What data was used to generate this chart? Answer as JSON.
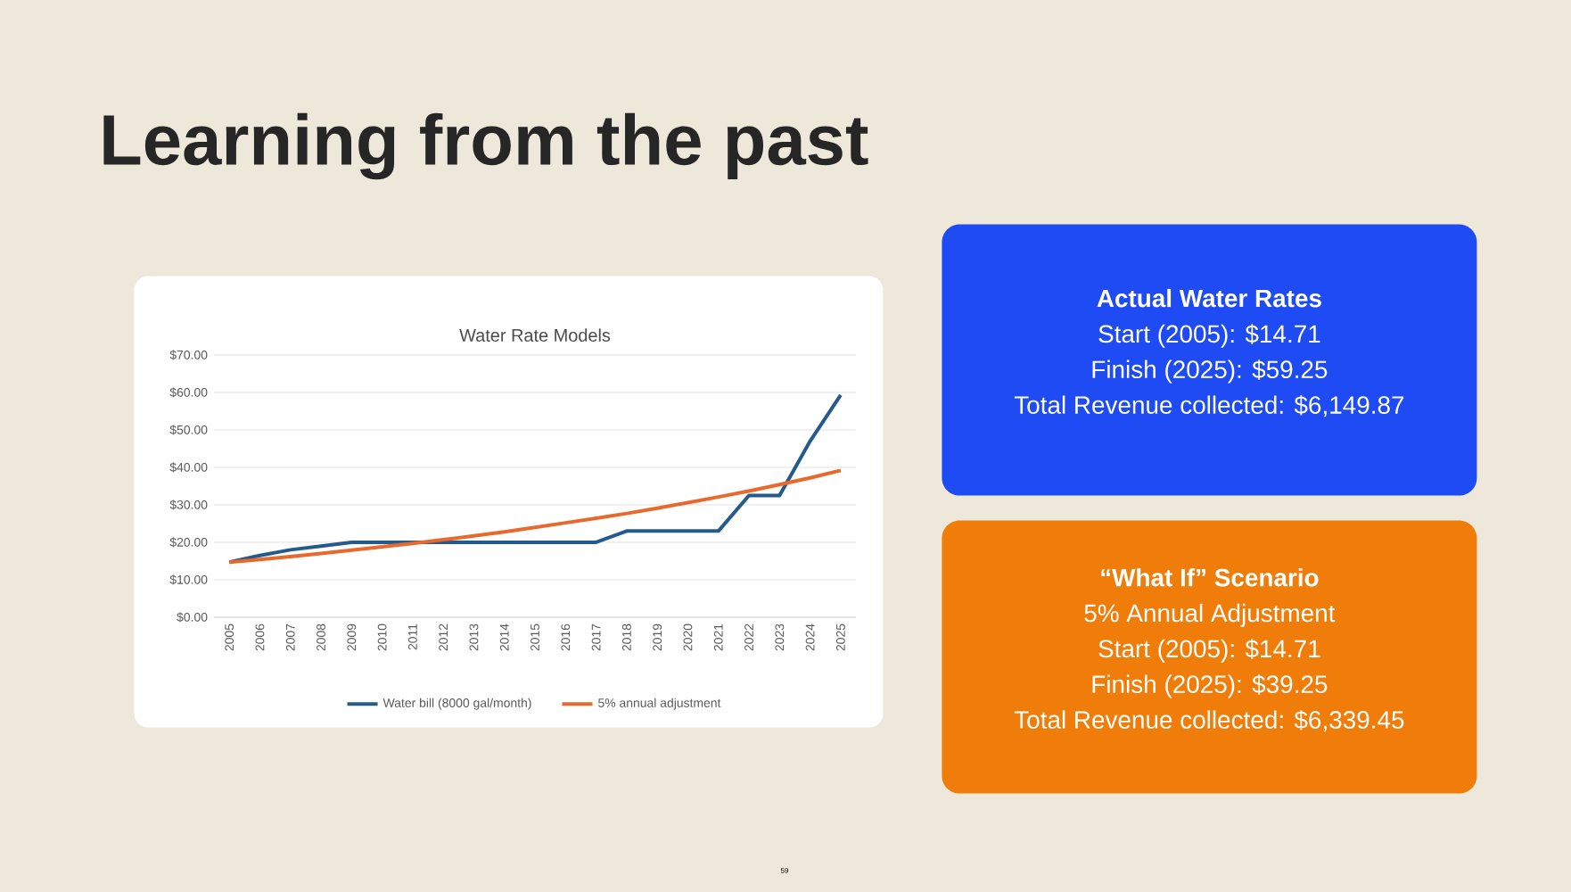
{
  "chart_data": [
    {
      "type": "line",
      "title": "Water Rate Models",
      "annotations": [
        "Learning from the past",
        "59"
      ],
      "categories": [
        "2005",
        "2006",
        "2007",
        "2008",
        "2009",
        "2010",
        "2011",
        "2012",
        "2013",
        "2014",
        "2015",
        "2016",
        "2017",
        "2018",
        "2019",
        "2020",
        "2021",
        "2022",
        "2023",
        "2024",
        "2025"
      ],
      "series": [
        {
          "name": "Water bill (8000 gal/month)",
          "color": "#245b8c",
          "values": [
            14.7,
            16.5,
            18,
            19,
            20,
            20,
            20,
            20,
            20,
            20,
            20,
            20,
            20,
            23,
            23,
            23,
            23,
            32.5,
            32.5,
            47,
            59.3
          ]
        },
        {
          "name": "5% annual adjustment",
          "color": "#e8692b",
          "values": [
            14.7,
            15.4,
            16.2,
            17,
            17.9,
            18.8,
            19.7,
            20.7,
            21.7,
            22.8,
            24,
            25.2,
            26.4,
            27.7,
            29.1,
            30.6,
            32.1,
            33.7,
            35.4,
            37.2,
            39.2
          ]
        }
      ],
      "ylim": [
        0,
        70
      ],
      "yticks": [
        {
          "value": 0,
          "label": "$0.00"
        },
        {
          "value": 10,
          "label": "$10.00"
        },
        {
          "value": 20,
          "label": "$20.00"
        },
        {
          "value": 30,
          "label": "$30.00"
        },
        {
          "value": 40,
          "label": "$40.00"
        },
        {
          "value": 50,
          "label": "$50.00"
        },
        {
          "value": 60,
          "label": "$60.00"
        },
        {
          "value": 70,
          "label": "$70.00"
        }
      ],
      "grid": "y",
      "legend": "bottom",
      "marker": "none",
      "line_style": "solid"
    },
    {
      "type": "other",
      "title": "Actual Water Rates",
      "color": "#1f4bf5",
      "annotations": [
        "Start (2005): $14.71",
        "Finish (2025): $59.25",
        "Total Revenue collected: $6,149.87"
      ]
    },
    {
      "type": "other",
      "title": "“What If” Scenario",
      "color": "#f07d0a",
      "annotations": [
        "5% Annual Adjustment",
        "Start (2005): $14.71",
        "Finish (2025): $39.25",
        "Total Revenue collected: $6,339.45"
      ]
    }
  ]
}
